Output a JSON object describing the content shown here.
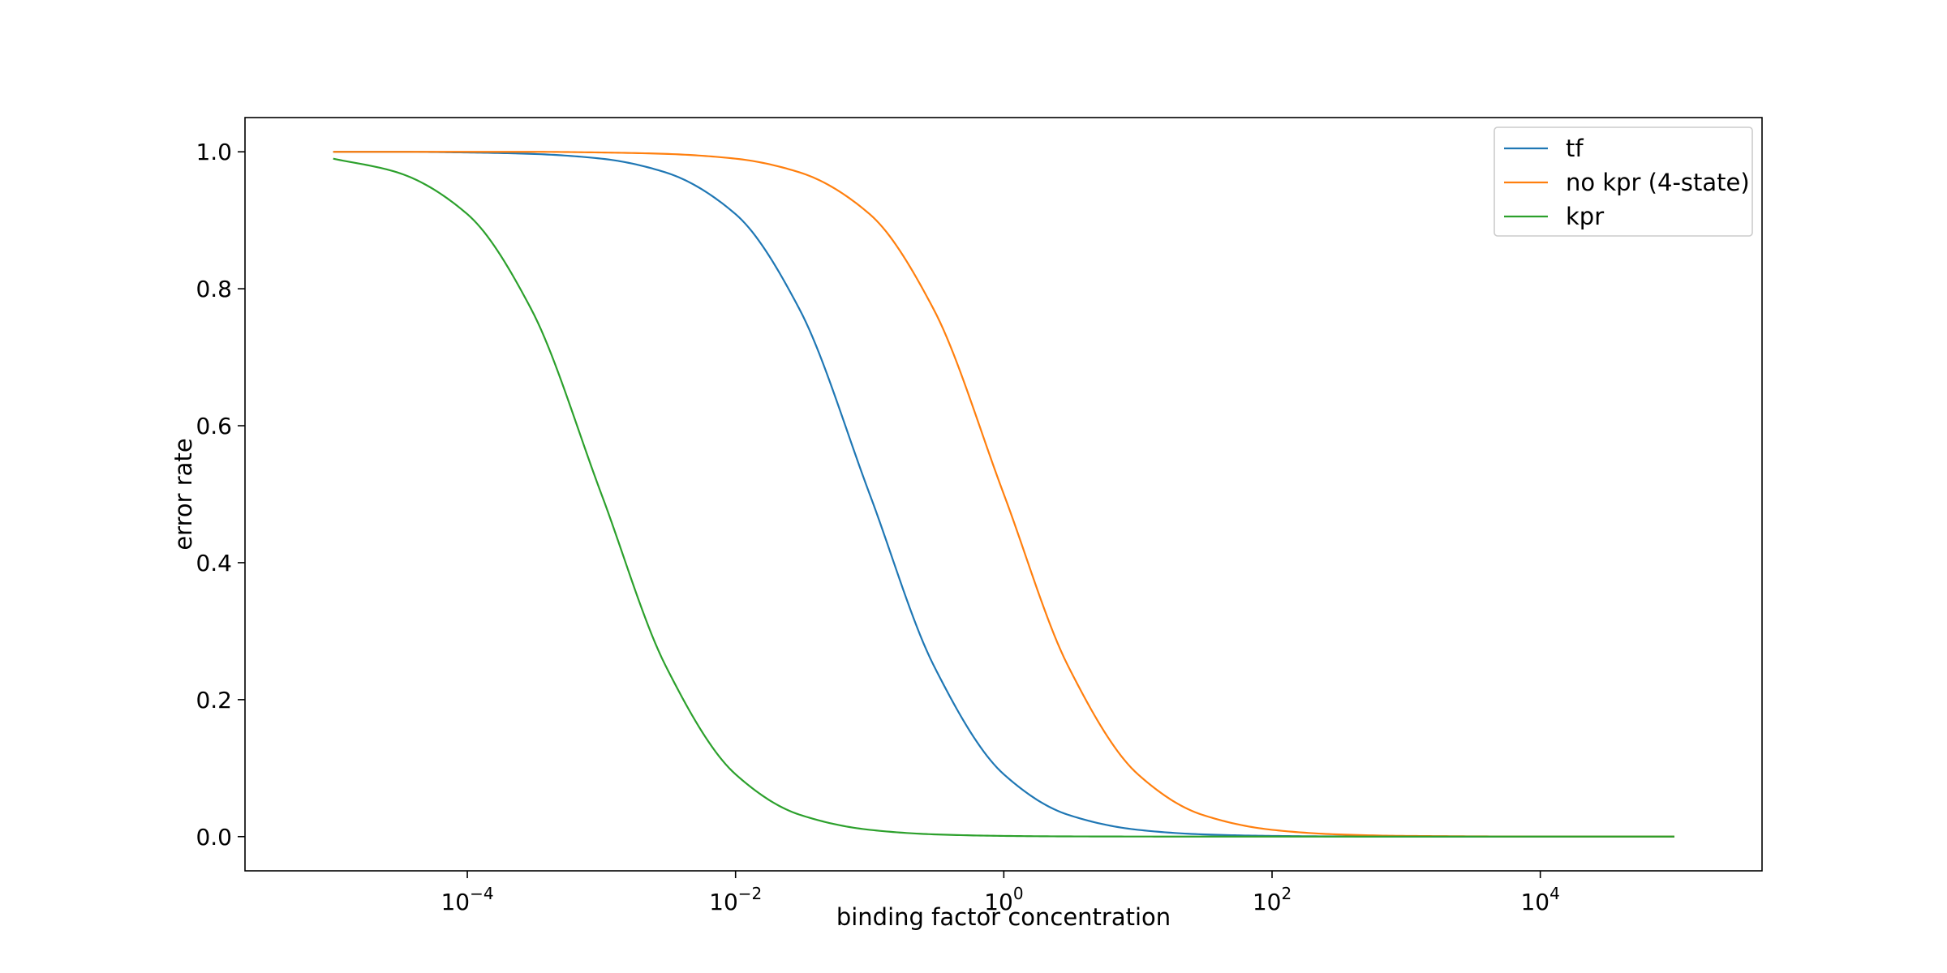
{
  "chart_data": {
    "type": "line",
    "title": "",
    "xlabel": "binding factor concentration",
    "ylabel": "error rate",
    "xscale": "log",
    "xlim": [
      2.2e-06,
      450000.0
    ],
    "ylim": [
      -0.05,
      1.05
    ],
    "grid": false,
    "legend_position": "top-right",
    "xticks": [
      {
        "value": 0.0001,
        "base": "10",
        "exp": "−4"
      },
      {
        "value": 0.01,
        "base": "10",
        "exp": "−2"
      },
      {
        "value": 1,
        "base": "10",
        "exp": "0"
      },
      {
        "value": 100,
        "base": "10",
        "exp": "2"
      },
      {
        "value": 10000,
        "base": "10",
        "exp": "4"
      }
    ],
    "yticks": [
      {
        "value": 0.0,
        "label": "0.0"
      },
      {
        "value": 0.2,
        "label": "0.2"
      },
      {
        "value": 0.4,
        "label": "0.4"
      },
      {
        "value": 0.6,
        "label": "0.6"
      },
      {
        "value": 0.8,
        "label": "0.8"
      },
      {
        "value": 1.0,
        "label": "1.0"
      }
    ],
    "x": [
      1e-05,
      3e-05,
      0.0001,
      0.0003,
      0.001,
      0.003,
      0.01,
      0.03,
      0.1,
      0.3,
      1,
      3,
      10,
      30,
      100,
      300,
      1000,
      10000.0,
      100000.0
    ],
    "series": [
      {
        "name": "tf",
        "color": "#1f77b4",
        "values": [
          1.0,
          1.0,
          0.999,
          0.997,
          0.99,
          0.97,
          0.909,
          0.77,
          0.5,
          0.25,
          0.091,
          0.032,
          0.0099,
          0.0033,
          0.001,
          0.0003,
          0.0001,
          0.0,
          0.0
        ]
      },
      {
        "name": "no kpr (4-state)",
        "color": "#ff7f0e",
        "values": [
          1.0,
          1.0,
          1.0,
          1.0,
          0.999,
          0.997,
          0.99,
          0.97,
          0.909,
          0.77,
          0.5,
          0.25,
          0.091,
          0.032,
          0.0099,
          0.0033,
          0.001,
          0.0001,
          0.0
        ]
      },
      {
        "name": "kpr",
        "color": "#2ca02c",
        "values": [
          0.99,
          0.97,
          0.909,
          0.77,
          0.5,
          0.25,
          0.091,
          0.032,
          0.0099,
          0.0033,
          0.001,
          0.0003,
          0.0001,
          0.0,
          0.0,
          0.0,
          0.0,
          0.0,
          0.0
        ]
      }
    ]
  }
}
